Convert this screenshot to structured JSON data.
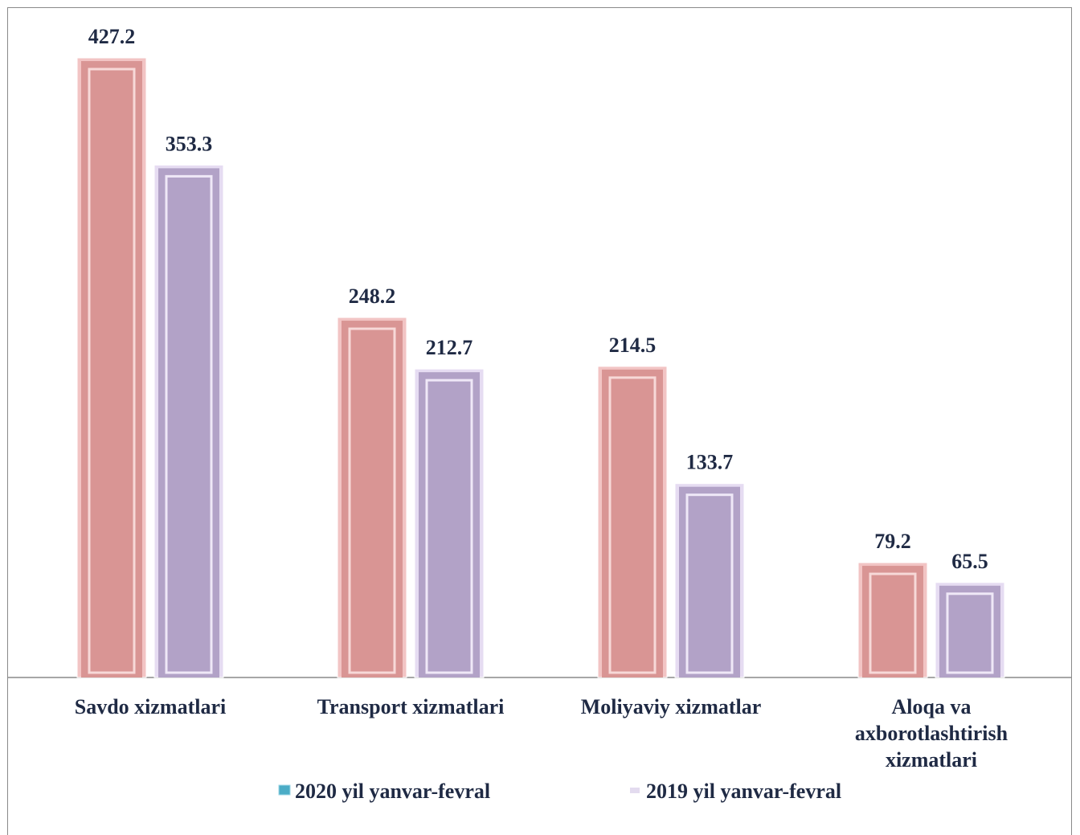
{
  "chart_data": {
    "type": "bar",
    "title": "",
    "xlabel": "",
    "ylabel": "",
    "categories": [
      [
        "Savdo xizmatlari"
      ],
      [
        "Transport xizmatlari"
      ],
      [
        "Moliyaviy xizmatlar"
      ],
      [
        "Aloqa va",
        "axborotlashtirish",
        "xizmatlari"
      ]
    ],
    "series": [
      {
        "name": "2020 yil yanvar-fevral",
        "values": [
          427.2,
          248.2,
          214.5,
          79.2
        ],
        "labels": [
          "427.2",
          "248.2",
          "214.5",
          "79.2"
        ],
        "color": "#d99594",
        "legend_marker_color": "#4bacc6"
      },
      {
        "name": "2019 yil yanvar-fevral",
        "values": [
          353.3,
          212.7,
          133.7,
          65.5
        ],
        "labels": [
          "353.3",
          "212.7",
          "133.7",
          "65.5"
        ],
        "color": "#b2a2c7",
        "legend_marker_color": "#b2a2c7"
      }
    ],
    "ylim": [
      0,
      427.2
    ],
    "grid": false,
    "legend_position": "bottom"
  }
}
